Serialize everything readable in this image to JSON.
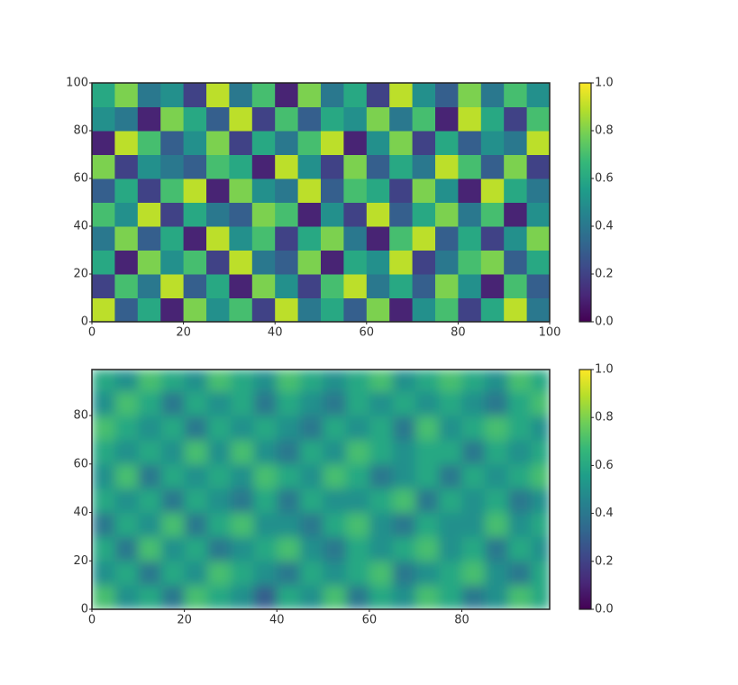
{
  "chart_data": [
    {
      "type": "heatmap",
      "x_edges": [
        0,
        5,
        10,
        15,
        20,
        25,
        30,
        35,
        40,
        45,
        50,
        55,
        60,
        65,
        70,
        75,
        80,
        85,
        90,
        95,
        100
      ],
      "y_edges": [
        0,
        10,
        20,
        30,
        40,
        50,
        60,
        70,
        80,
        90,
        100
      ],
      "z": [
        [
          0.9,
          0.3,
          0.6,
          0.1,
          0.8,
          0.5,
          0.7,
          0.2,
          0.9,
          0.4,
          0.6,
          0.3,
          0.8,
          0.1,
          0.5,
          0.7,
          0.2,
          0.6,
          0.9,
          0.4
        ],
        [
          0.2,
          0.7,
          0.4,
          0.9,
          0.3,
          0.6,
          0.1,
          0.8,
          0.5,
          0.2,
          0.7,
          0.9,
          0.4,
          0.6,
          0.3,
          0.8,
          0.5,
          0.1,
          0.7,
          0.3
        ],
        [
          0.6,
          0.1,
          0.8,
          0.5,
          0.7,
          0.2,
          0.9,
          0.4,
          0.3,
          0.8,
          0.1,
          0.6,
          0.5,
          0.9,
          0.2,
          0.4,
          0.7,
          0.8,
          0.3,
          0.6
        ],
        [
          0.4,
          0.8,
          0.3,
          0.6,
          0.1,
          0.9,
          0.5,
          0.7,
          0.2,
          0.6,
          0.8,
          0.4,
          0.1,
          0.7,
          0.9,
          0.3,
          0.6,
          0.2,
          0.5,
          0.8
        ],
        [
          0.7,
          0.5,
          0.9,
          0.2,
          0.6,
          0.4,
          0.3,
          0.8,
          0.7,
          0.1,
          0.5,
          0.2,
          0.9,
          0.3,
          0.6,
          0.8,
          0.4,
          0.7,
          0.1,
          0.5
        ],
        [
          0.3,
          0.6,
          0.2,
          0.7,
          0.9,
          0.1,
          0.8,
          0.5,
          0.4,
          0.9,
          0.3,
          0.7,
          0.6,
          0.2,
          0.8,
          0.5,
          0.1,
          0.9,
          0.6,
          0.4
        ],
        [
          0.8,
          0.2,
          0.5,
          0.4,
          0.3,
          0.7,
          0.6,
          0.1,
          0.9,
          0.5,
          0.2,
          0.8,
          0.3,
          0.6,
          0.4,
          0.9,
          0.7,
          0.3,
          0.8,
          0.2
        ],
        [
          0.1,
          0.9,
          0.7,
          0.3,
          0.5,
          0.8,
          0.2,
          0.6,
          0.4,
          0.7,
          0.9,
          0.1,
          0.5,
          0.8,
          0.2,
          0.6,
          0.3,
          0.5,
          0.4,
          0.9
        ],
        [
          0.5,
          0.4,
          0.1,
          0.8,
          0.6,
          0.3,
          0.9,
          0.2,
          0.7,
          0.3,
          0.6,
          0.5,
          0.8,
          0.4,
          0.7,
          0.1,
          0.9,
          0.6,
          0.2,
          0.7
        ],
        [
          0.6,
          0.8,
          0.4,
          0.5,
          0.2,
          0.9,
          0.4,
          0.7,
          0.1,
          0.8,
          0.4,
          0.6,
          0.2,
          0.9,
          0.5,
          0.3,
          0.8,
          0.4,
          0.7,
          0.5
        ]
      ],
      "xlim": [
        0,
        100
      ],
      "ylim": [
        0,
        100
      ],
      "xticks": [
        0,
        20,
        40,
        60,
        80,
        100
      ],
      "yticks": [
        0,
        20,
        40,
        60,
        80,
        100
      ],
      "clim": [
        0,
        1
      ],
      "cticks": [
        {
          "value": 0,
          "label": "0.0"
        },
        {
          "value": 0.2,
          "label": "0.2"
        },
        {
          "value": 0.4,
          "label": "0.4"
        },
        {
          "value": 0.6,
          "label": "0.6"
        },
        {
          "value": 0.8,
          "label": "0.8"
        },
        {
          "value": 1,
          "label": "1.0"
        }
      ],
      "colormap": [
        "#440154",
        "#482878",
        "#3e4989",
        "#31688e",
        "#26828e",
        "#1f9e89",
        "#35b779",
        "#6ece58",
        "#b5de2b",
        "#fde725"
      ]
    },
    {
      "type": "contour",
      "x_edges": [
        0,
        5,
        10,
        15,
        20,
        25,
        30,
        35,
        40,
        45,
        50,
        55,
        60,
        65,
        70,
        75,
        80,
        85,
        90,
        95,
        99
      ],
      "y_edges": [
        0,
        10,
        20,
        30,
        40,
        50,
        60,
        70,
        80,
        90,
        99
      ],
      "z": [
        [
          0.7,
          0.5,
          0.6,
          0.4,
          0.7,
          0.6,
          0.5,
          0.3,
          0.6,
          0.5,
          0.7,
          0.4,
          0.6,
          0.5,
          0.7,
          0.6,
          0.4,
          0.5,
          0.7,
          0.6
        ],
        [
          0.5,
          0.6,
          0.4,
          0.6,
          0.5,
          0.7,
          0.6,
          0.5,
          0.4,
          0.6,
          0.5,
          0.6,
          0.7,
          0.4,
          0.5,
          0.6,
          0.7,
          0.5,
          0.4,
          0.6
        ],
        [
          0.6,
          0.4,
          0.7,
          0.5,
          0.6,
          0.4,
          0.5,
          0.6,
          0.7,
          0.5,
          0.4,
          0.6,
          0.5,
          0.6,
          0.7,
          0.5,
          0.6,
          0.4,
          0.6,
          0.5
        ],
        [
          0.4,
          0.6,
          0.5,
          0.7,
          0.4,
          0.6,
          0.7,
          0.5,
          0.5,
          0.4,
          0.6,
          0.7,
          0.5,
          0.4,
          0.6,
          0.5,
          0.5,
          0.7,
          0.5,
          0.6
        ],
        [
          0.6,
          0.5,
          0.6,
          0.4,
          0.6,
          0.5,
          0.4,
          0.6,
          0.4,
          0.6,
          0.5,
          0.5,
          0.6,
          0.7,
          0.4,
          0.6,
          0.5,
          0.6,
          0.4,
          0.5
        ],
        [
          0.5,
          0.7,
          0.4,
          0.6,
          0.5,
          0.6,
          0.5,
          0.7,
          0.6,
          0.5,
          0.7,
          0.6,
          0.4,
          0.5,
          0.6,
          0.4,
          0.6,
          0.5,
          0.6,
          0.7
        ],
        [
          0.6,
          0.5,
          0.6,
          0.5,
          0.7,
          0.5,
          0.7,
          0.5,
          0.4,
          0.6,
          0.5,
          0.7,
          0.6,
          0.5,
          0.6,
          0.6,
          0.4,
          0.6,
          0.5,
          0.6
        ],
        [
          0.7,
          0.6,
          0.5,
          0.6,
          0.4,
          0.6,
          0.5,
          0.6,
          0.5,
          0.4,
          0.6,
          0.5,
          0.6,
          0.4,
          0.7,
          0.5,
          0.6,
          0.7,
          0.6,
          0.5
        ],
        [
          0.5,
          0.7,
          0.6,
          0.4,
          0.6,
          0.5,
          0.6,
          0.4,
          0.6,
          0.5,
          0.4,
          0.6,
          0.5,
          0.6,
          0.5,
          0.6,
          0.5,
          0.4,
          0.6,
          0.7
        ],
        [
          0.6,
          0.5,
          0.7,
          0.6,
          0.5,
          0.7,
          0.6,
          0.5,
          0.7,
          0.6,
          0.5,
          0.6,
          0.7,
          0.5,
          0.6,
          0.7,
          0.6,
          0.5,
          0.7,
          0.6
        ]
      ],
      "xlim": [
        0,
        99
      ],
      "ylim": [
        0,
        99
      ],
      "xticks": [
        0,
        20,
        40,
        60,
        80
      ],
      "yticks": [
        0,
        20,
        40,
        60,
        80
      ],
      "clim": [
        0,
        1
      ],
      "cticks": [
        {
          "value": 0,
          "label": "0.0"
        },
        {
          "value": 0.2,
          "label": "0.2"
        },
        {
          "value": 0.4,
          "label": "0.4"
        },
        {
          "value": 0.6,
          "label": "0.6"
        },
        {
          "value": 0.8,
          "label": "0.8"
        },
        {
          "value": 1,
          "label": "1.0"
        }
      ],
      "colormap": [
        "#440154",
        "#482878",
        "#3e4989",
        "#31688e",
        "#26828e",
        "#1f9e89",
        "#35b779",
        "#6ece58",
        "#b5de2b",
        "#fde725"
      ]
    }
  ]
}
